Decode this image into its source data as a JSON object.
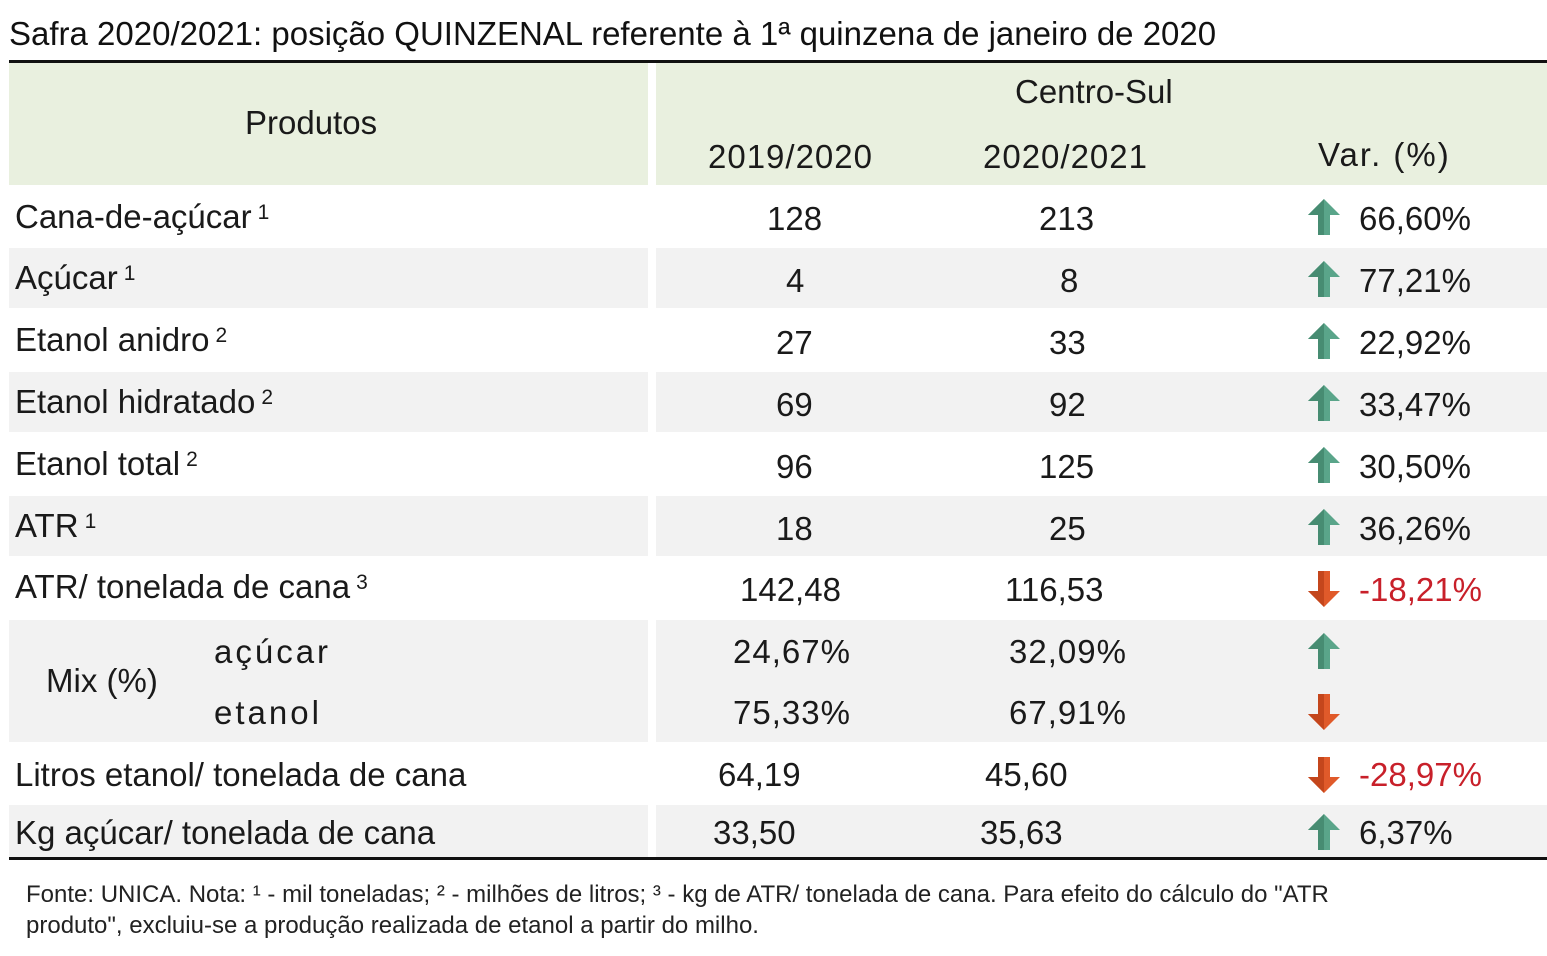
{
  "title": "Safra 2020/2021: posição QUINZENAL referente à 1ª quinzena de janeiro de 2020",
  "header": {
    "products_label": "Produtos",
    "region_label": "Centro-Sul",
    "col_prev": "2019/2020",
    "col_curr": "2020/2021",
    "col_var": "Var. (%)"
  },
  "colors": {
    "header_bg": "#e9f0df",
    "band_bg": "#f2f2f2",
    "up_arrow": "#5aa58a",
    "down_arrow": "#e05a2a",
    "negative_text": "#c8202a"
  },
  "rows": [
    {
      "label": "Cana-de-açúcar",
      "sup": "1",
      "prev": "128",
      "curr": "213",
      "trend": "up",
      "var": "66,60%"
    },
    {
      "label": "Açúcar",
      "sup": "1",
      "prev": "4",
      "curr": "8",
      "trend": "up",
      "var": "77,21%"
    },
    {
      "label": "Etanol anidro",
      "sup": "2",
      "prev": "27",
      "curr": "33",
      "trend": "up",
      "var": "22,92%"
    },
    {
      "label": "Etanol hidratado",
      "sup": "2",
      "prev": "69",
      "curr": "92",
      "trend": "up",
      "var": "33,47%"
    },
    {
      "label": "Etanol total",
      "sup": "2",
      "prev": "96",
      "curr": "125",
      "trend": "up",
      "var": "30,50%"
    },
    {
      "label": "ATR",
      "sup": "1",
      "prev": "18",
      "curr": "25",
      "trend": "up",
      "var": "36,26%"
    },
    {
      "label": "ATR/ tonelada de cana",
      "sup": "3",
      "prev": "142,48",
      "curr": "116,53",
      "trend": "down",
      "var": "-18,21%"
    }
  ],
  "mix": {
    "label": "Mix (%)",
    "rows": [
      {
        "label": "açúcar",
        "prev": "24,67%",
        "curr": "32,09%",
        "trend": "up"
      },
      {
        "label": "etanol",
        "prev": "75,33%",
        "curr": "67,91%",
        "trend": "down"
      }
    ]
  },
  "rows_after": [
    {
      "label": "Litros etanol/ tonelada de cana",
      "prev": "64,19",
      "curr": "45,60",
      "trend": "down",
      "var": "-28,97%"
    },
    {
      "label": "Kg açúcar/ tonelada de cana",
      "prev": "33,50",
      "curr": "35,63",
      "trend": "up",
      "var": "6,37%"
    }
  ],
  "footer": {
    "line1": "Fonte: UNICA. Nota: ¹ - mil toneladas; ² - milhões de litros; ³ - kg de ATR/ tonelada de cana. Para efeito do cálculo do \"ATR",
    "line2": "produto\", excluiu-se a produção realizada de etanol a partir do milho."
  }
}
